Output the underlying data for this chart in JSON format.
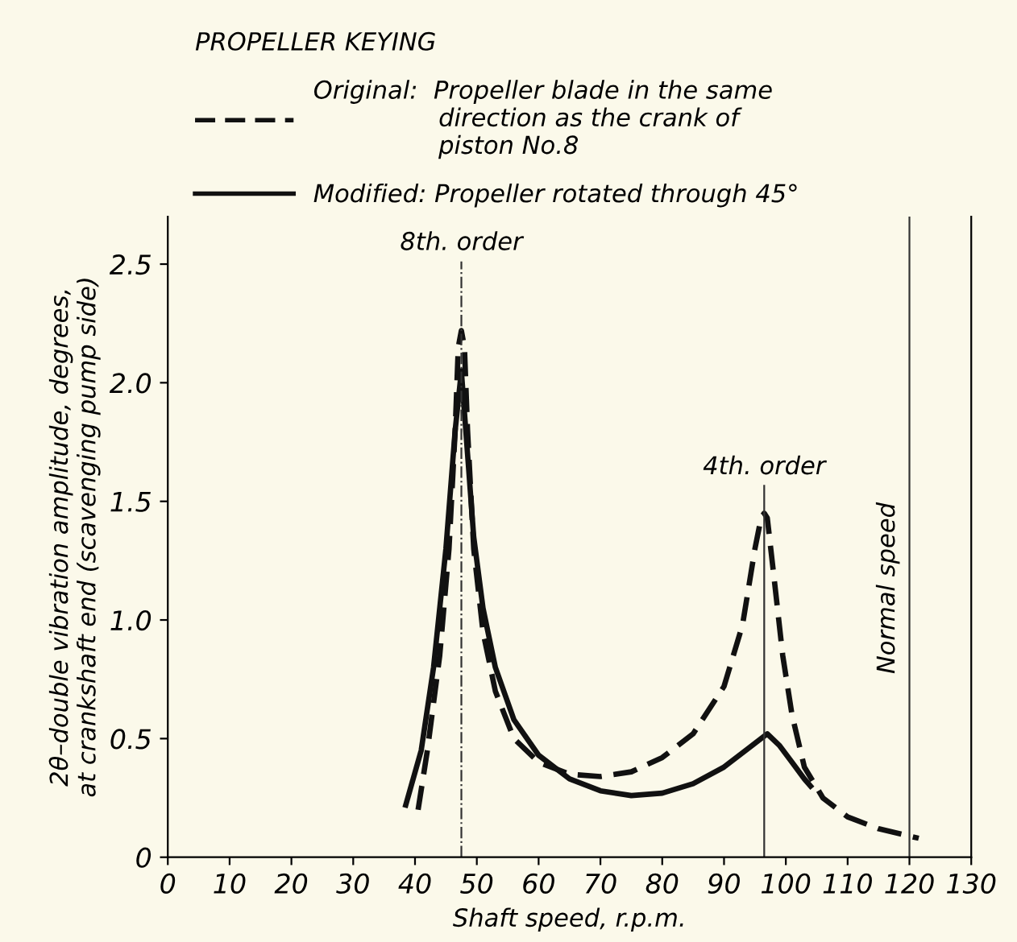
{
  "chart_data": {
    "type": "line",
    "legend_title": "PROPELLER KEYING",
    "legend": "top left",
    "xlabel": "Shaft speed, r.p.m.",
    "ylabel": "2θ–double vibration amplitude, degrees,\nat crankshaft end (scavenging pump side)",
    "xlim": [
      0,
      130
    ],
    "ylim": [
      0,
      2.7
    ],
    "xticks": [
      0,
      10,
      20,
      30,
      40,
      50,
      60,
      70,
      80,
      90,
      100,
      110,
      120,
      130
    ],
    "yticks": [
      0,
      0.5,
      {
        "value": 1,
        "label": "1.0"
      },
      1.5,
      {
        "value": 2,
        "label": "2.0"
      },
      2.5
    ],
    "grid": false,
    "marker": "none",
    "series": [
      {
        "name": "Original:  Propeller blade in the same\n                direction as the crank of\n                piston No.8",
        "color": "#111111",
        "line_style": "dashed",
        "x": [
          40.5,
          42,
          44,
          45.5,
          46.5,
          47,
          47.5,
          48,
          48.5,
          49.5,
          51,
          53,
          56,
          60,
          65,
          70,
          75,
          80,
          85,
          90,
          93,
          95,
          96,
          96.5,
          97,
          98,
          99.5,
          101,
          103,
          106,
          110,
          115,
          121.5
        ],
        "values": [
          0.2,
          0.45,
          0.85,
          1.3,
          1.8,
          2.15,
          2.22,
          2.15,
          1.8,
          1.3,
          0.95,
          0.7,
          0.5,
          0.4,
          0.35,
          0.34,
          0.36,
          0.42,
          0.52,
          0.72,
          0.98,
          1.3,
          1.43,
          1.45,
          1.43,
          1.2,
          0.85,
          0.6,
          0.38,
          0.25,
          0.17,
          0.12,
          0.08
        ]
      },
      {
        "name": "Modified: Propeller rotated through 45°",
        "color": "#111111",
        "line_style": "solid",
        "x": [
          38.5,
          41,
          43,
          45,
          46.5,
          47.5,
          48.5,
          49.5,
          51,
          53,
          56,
          60,
          65,
          70,
          75,
          80,
          85,
          90,
          94,
          97,
          99,
          101,
          103,
          104
        ],
        "values": [
          0.22,
          0.45,
          0.8,
          1.3,
          1.8,
          2.05,
          1.7,
          1.35,
          1.05,
          0.8,
          0.58,
          0.43,
          0.33,
          0.28,
          0.26,
          0.27,
          0.31,
          0.38,
          0.46,
          0.52,
          0.47,
          0.4,
          0.33,
          0.3
        ]
      }
    ],
    "ref_lines": [
      {
        "axis": "x",
        "value": 47.5,
        "label": "8th. order",
        "line_style": "dashed",
        "color": "#333333"
      },
      {
        "axis": "x",
        "value": 96.5,
        "label": "4th. order",
        "line_style": "solid",
        "color": "#333333"
      },
      {
        "axis": "x",
        "value": 120,
        "label": "Normal speed",
        "line_style": "solid",
        "color": "#333333"
      }
    ]
  }
}
